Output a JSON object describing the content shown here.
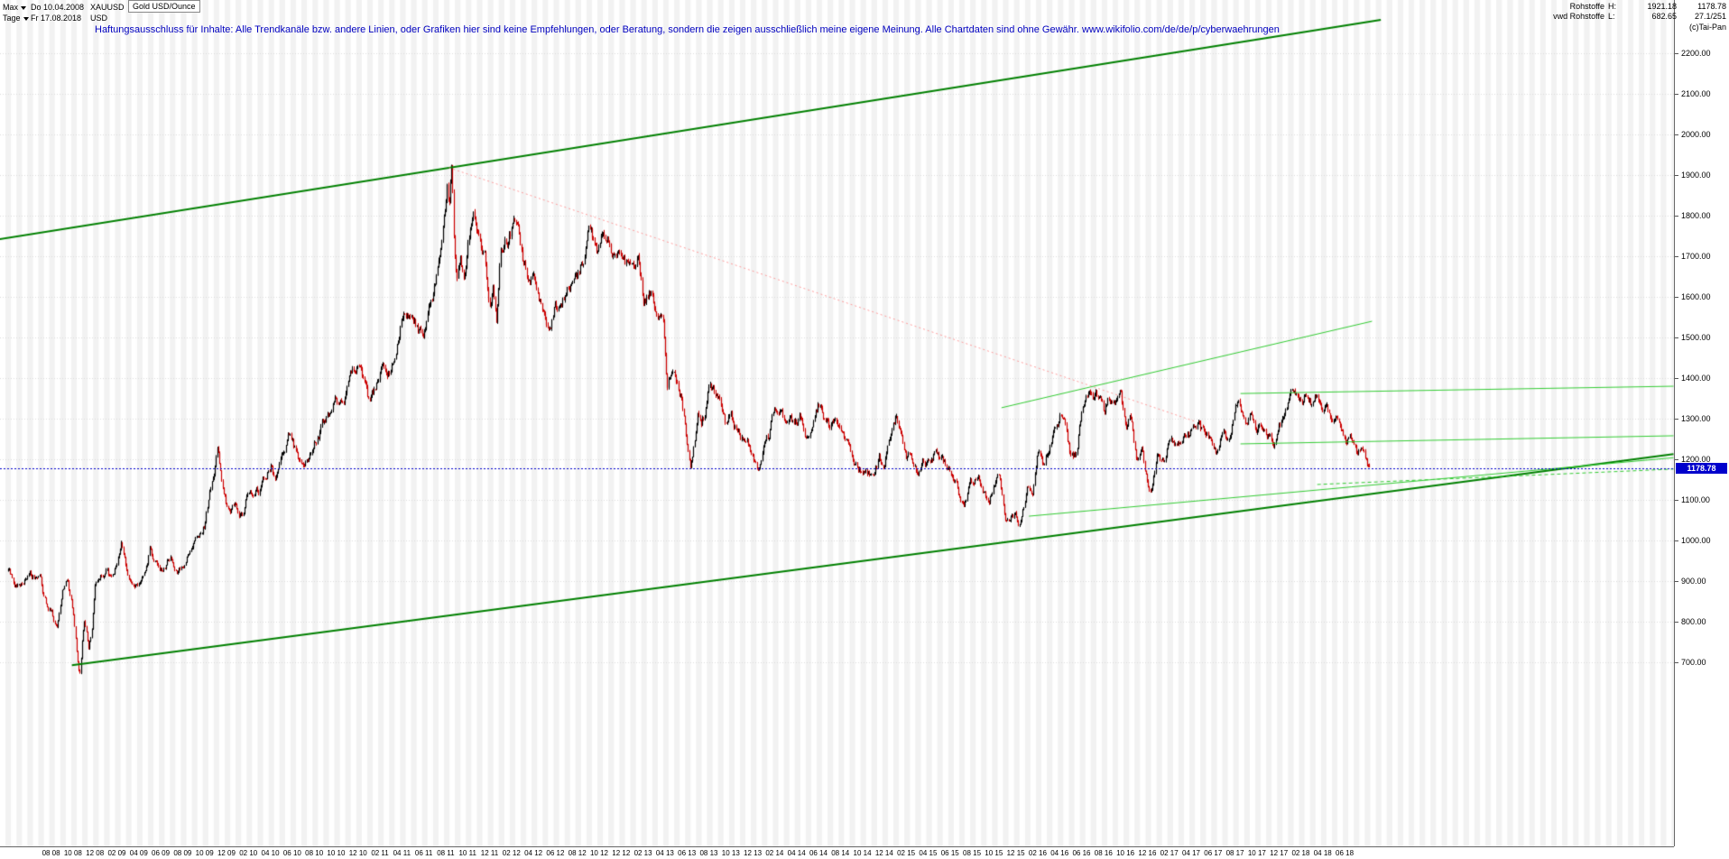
{
  "toolbar": {
    "range_label": "Max",
    "start_date": "Do 10.04.2008",
    "symbol": "XAUUSD",
    "period_label": "Tage",
    "end_date": "Fr 17.08.2018",
    "currency": "USD",
    "instrument": "Gold USD/Ounce"
  },
  "disclaimer": "Haftungsausschluss für Inhalte: Alle Trendkanäle bzw. andere Linien, oder Grafiken hier sind keine Empfehlungen, oder Beratung, sondern die zeigen ausschließlich meine eigene Meinung. Alle Chartdaten sind ohne Gewähr.  www.wikifolio.com/de/de/p/cyberwaehrungen",
  "info_panel": {
    "category": "Rohstoffe",
    "high_label": "H:",
    "high_value": "1921.18",
    "last_value": "1178.78",
    "provider": "vwd Rohstoffe",
    "low_label": "L:",
    "low_value": "682.65",
    "cursor_position": "27.1/251",
    "copyright": "(c)Tai-Pan"
  },
  "chart_data": {
    "type": "candlestick",
    "title": "Gold USD/Ounce",
    "symbol": "XAUUSD",
    "timeframe": "Tage",
    "period_start": "10.04.2008",
    "period_end": "17.08.2018",
    "high": 1921.18,
    "low": 682.65,
    "last": 1178.78,
    "grid": true,
    "legend_position": "none",
    "ylim": [
      247,
      2331
    ],
    "months_span": 124.3,
    "y_ticks": [
      "2200.00",
      "2100.00",
      "2000.00",
      "1900.00",
      "1800.00",
      "1700.00",
      "1600.00",
      "1500.00",
      "1400.00",
      "1300.00",
      "1200.00",
      "1100.00",
      "1000.00",
      "900.00",
      "800.00",
      "700.00"
    ],
    "x_ticks": [
      "08 08",
      "10 08",
      "12 08",
      "02 09",
      "04 09",
      "06 09",
      "08 09",
      "10 09",
      "12 09",
      "02 10",
      "04 10",
      "06 10",
      "08 10",
      "10 10",
      "12 10",
      "02 11",
      "04 11",
      "06 11",
      "08 11",
      "10 11",
      "12 11",
      "02 12",
      "04 12",
      "06 12",
      "08 12",
      "10 12",
      "12 12",
      "02 13",
      "04 13",
      "06 13",
      "08 13",
      "10 13",
      "12 13",
      "02 14",
      "04 14",
      "06 14",
      "08 14",
      "10 14",
      "12 14",
      "02 15",
      "04 15",
      "06 15",
      "08 15",
      "10 15",
      "12 15",
      "02 16",
      "04 16",
      "06 16",
      "08 16",
      "10 16",
      "12 16",
      "02 17",
      "04 17",
      "06 17",
      "08 17",
      "10 17",
      "12 17",
      "02 18",
      "04 18",
      "06 18"
    ],
    "price_path_monthly": [
      [
        0,
        925
      ],
      [
        1,
        880
      ],
      [
        2,
        930
      ],
      [
        3,
        915
      ],
      [
        3.5,
        850
      ],
      [
        4,
        835
      ],
      [
        4.5,
        790
      ],
      [
        5,
        880
      ],
      [
        5.5,
        905
      ],
      [
        6,
        830
      ],
      [
        6.45,
        700
      ],
      [
        6.6,
        683
      ],
      [
        6.75,
        735
      ],
      [
        7,
        815
      ],
      [
        7.4,
        745
      ],
      [
        7.7,
        780
      ],
      [
        8,
        880
      ],
      [
        9,
        920
      ],
      [
        9.5,
        895
      ],
      [
        10,
        950
      ],
      [
        10.4,
        1000
      ],
      [
        11,
        920
      ],
      [
        12,
        890
      ],
      [
        12.5,
        905
      ],
      [
        13,
        975
      ],
      [
        13.5,
        945
      ],
      [
        14,
        930
      ],
      [
        15,
        955
      ],
      [
        15.5,
        935
      ],
      [
        16,
        950
      ],
      [
        17,
        1010
      ],
      [
        18,
        1045
      ],
      [
        19,
        1190
      ],
      [
        19.2,
        1220
      ],
      [
        19.6,
        1130
      ],
      [
        20,
        1095
      ],
      [
        21,
        1080
      ],
      [
        21.5,
        1058
      ],
      [
        22,
        1120
      ],
      [
        23,
        1115
      ],
      [
        24,
        1180
      ],
      [
        24.5,
        1160
      ],
      [
        25,
        1215
      ],
      [
        25.6,
        1245
      ],
      [
        26,
        1240
      ],
      [
        26.5,
        1196
      ],
      [
        27,
        1170
      ],
      [
        27.5,
        1210
      ],
      [
        28,
        1250
      ],
      [
        29,
        1310
      ],
      [
        30,
        1360
      ],
      [
        30.5,
        1340
      ],
      [
        31,
        1385
      ],
      [
        32,
        1420
      ],
      [
        33,
        1335
      ],
      [
        33.5,
        1360
      ],
      [
        34,
        1410
      ],
      [
        35,
        1430
      ],
      [
        36,
        1560
      ],
      [
        36.5,
        1540
      ],
      [
        37,
        1535
      ],
      [
        37.5,
        1510
      ],
      [
        38,
        1500
      ],
      [
        38.5,
        1560
      ],
      [
        39,
        1630
      ],
      [
        39.5,
        1740
      ],
      [
        40,
        1825
      ],
      [
        40.15,
        1890
      ],
      [
        40.3,
        1830
      ],
      [
        40.45,
        1905
      ],
      [
        40.55,
        1921
      ],
      [
        40.75,
        1720
      ],
      [
        41,
        1620
      ],
      [
        41.3,
        1680
      ],
      [
        41.6,
        1640
      ],
      [
        42,
        1720
      ],
      [
        42.5,
        1800
      ],
      [
        43,
        1745
      ],
      [
        43.5,
        1695
      ],
      [
        44,
        1565
      ],
      [
        44.3,
        1610
      ],
      [
        44.6,
        1545
      ],
      [
        45,
        1740
      ],
      [
        46,
        1770
      ],
      [
        46.4,
        1790
      ],
      [
        47,
        1670
      ],
      [
        47.5,
        1640
      ],
      [
        48,
        1665
      ],
      [
        48.5,
        1620
      ],
      [
        49,
        1560
      ],
      [
        49.3,
        1540
      ],
      [
        50,
        1600
      ],
      [
        50.5,
        1570
      ],
      [
        51,
        1615
      ],
      [
        52,
        1650
      ],
      [
        52.5,
        1690
      ],
      [
        53,
        1775
      ],
      [
        53.5,
        1740
      ],
      [
        54,
        1720
      ],
      [
        54.5,
        1750
      ],
      [
        55,
        1715
      ],
      [
        55.5,
        1690
      ],
      [
        56,
        1675
      ],
      [
        57,
        1660
      ],
      [
        57.5,
        1690
      ],
      [
        58,
        1580
      ],
      [
        58.5,
        1620
      ],
      [
        59,
        1595
      ],
      [
        59.8,
        1560
      ],
      [
        60,
        1470
      ],
      [
        60.2,
        1390
      ],
      [
        60.6,
        1440
      ],
      [
        61,
        1390
      ],
      [
        61.5,
        1350
      ],
      [
        62,
        1230
      ],
      [
        62.3,
        1185
      ],
      [
        62.7,
        1250
      ],
      [
        63,
        1310
      ],
      [
        63.3,
        1280
      ],
      [
        63.7,
        1320
      ],
      [
        64,
        1395
      ],
      [
        64.5,
        1360
      ],
      [
        65,
        1330
      ],
      [
        65.5,
        1290
      ],
      [
        66,
        1320
      ],
      [
        66.5,
        1275
      ],
      [
        67,
        1250
      ],
      [
        67.5,
        1230
      ],
      [
        68,
        1200
      ],
      [
        68.4,
        1188
      ],
      [
        69,
        1245
      ],
      [
        69.5,
        1260
      ],
      [
        70,
        1325
      ],
      [
        70.5,
        1330
      ],
      [
        71,
        1285
      ],
      [
        72,
        1290
      ],
      [
        72.5,
        1300
      ],
      [
        73,
        1250
      ],
      [
        73.5,
        1285
      ],
      [
        74,
        1325
      ],
      [
        74.5,
        1305
      ],
      [
        75,
        1285
      ],
      [
        75.5,
        1310
      ],
      [
        76,
        1285
      ],
      [
        76.5,
        1240
      ],
      [
        77,
        1210
      ],
      [
        77.5,
        1185
      ],
      [
        78,
        1170
      ],
      [
        78.3,
        1160
      ],
      [
        79,
        1175
      ],
      [
        79.5,
        1200
      ],
      [
        80,
        1185
      ],
      [
        81,
        1280
      ],
      [
        81.5,
        1260
      ],
      [
        82,
        1215
      ],
      [
        82.5,
        1200
      ],
      [
        83,
        1185
      ],
      [
        83.5,
        1200
      ],
      [
        84,
        1185
      ],
      [
        84.5,
        1215
      ],
      [
        85,
        1190
      ],
      [
        85.5,
        1180
      ],
      [
        86,
        1170
      ],
      [
        86.5,
        1160
      ],
      [
        87,
        1095
      ],
      [
        87.3,
        1080
      ],
      [
        87.7,
        1120
      ],
      [
        88,
        1135
      ],
      [
        88.5,
        1150
      ],
      [
        89,
        1115
      ],
      [
        89.5,
        1105
      ],
      [
        90,
        1140
      ],
      [
        90.5,
        1165
      ],
      [
        91,
        1065
      ],
      [
        91.5,
        1070
      ],
      [
        92,
        1060
      ],
      [
        92.5,
        1048
      ],
      [
        93,
        1115
      ],
      [
        93.5,
        1125
      ],
      [
        94,
        1235
      ],
      [
        94.5,
        1200
      ],
      [
        95,
        1235
      ],
      [
        95.5,
        1260
      ],
      [
        96,
        1290
      ],
      [
        96.5,
        1285
      ],
      [
        97,
        1215
      ],
      [
        97.5,
        1220
      ],
      [
        98,
        1320
      ],
      [
        98.4,
        1360
      ],
      [
        99,
        1350
      ],
      [
        99.3,
        1367
      ],
      [
        100,
        1310
      ],
      [
        100.5,
        1340
      ],
      [
        101,
        1315
      ],
      [
        101.5,
        1335
      ],
      [
        102,
        1275
      ],
      [
        102.5,
        1300
      ],
      [
        103,
        1175
      ],
      [
        103.5,
        1220
      ],
      [
        104,
        1150
      ],
      [
        104.4,
        1128
      ],
      [
        105,
        1210
      ],
      [
        105.5,
        1190
      ],
      [
        106,
        1250
      ],
      [
        106.5,
        1235
      ],
      [
        107,
        1245
      ],
      [
        108,
        1270
      ],
      [
        108.5,
        1290
      ],
      [
        109,
        1270
      ],
      [
        109.5,
        1255
      ],
      [
        110,
        1240
      ],
      [
        110.4,
        1215
      ],
      [
        111,
        1270
      ],
      [
        111.5,
        1255
      ],
      [
        112,
        1320
      ],
      [
        112.3,
        1350
      ],
      [
        112.7,
        1310
      ],
      [
        113,
        1280
      ],
      [
        113.5,
        1305
      ],
      [
        114,
        1270
      ],
      [
        114.5,
        1290
      ],
      [
        115,
        1275
      ],
      [
        115.5,
        1250
      ],
      [
        116,
        1300
      ],
      [
        117,
        1345
      ],
      [
        117.3,
        1360
      ],
      [
        118,
        1320
      ],
      [
        118.5,
        1355
      ],
      [
        119,
        1325
      ],
      [
        119.5,
        1350
      ],
      [
        120,
        1315
      ],
      [
        120.5,
        1305
      ],
      [
        121,
        1300
      ],
      [
        121.5,
        1290
      ],
      [
        122,
        1250
      ],
      [
        122.5,
        1260
      ],
      [
        123,
        1225
      ],
      [
        123.4,
        1215
      ],
      [
        123.7,
        1210
      ],
      [
        124,
        1195
      ],
      [
        124.3,
        1178.78
      ]
    ],
    "trendlines": [
      {
        "name": "channel-upper",
        "t1": -0.7,
        "p1": 1742,
        "t2": 125.3,
        "p2": 2282,
        "color": "#008000",
        "width": 2,
        "dash": []
      },
      {
        "name": "channel-lower",
        "t1": 5.9,
        "p1": 693,
        "t2": 152,
        "p2": 1213,
        "color": "#008000",
        "width": 2,
        "dash": []
      },
      {
        "name": "downtrend-from-ath",
        "t1": 40.3,
        "p1": 1918,
        "t2": 108.4,
        "p2": 1293,
        "color": "#ff9c9c",
        "width": 1,
        "dash": [
          2,
          3
        ]
      },
      {
        "name": "minor-uptrend-2016",
        "t1": 90.7,
        "p1": 1327,
        "t2": 124.5,
        "p2": 1540,
        "color": "#33cc33",
        "width": 1,
        "dash": []
      },
      {
        "name": "resistance-upper",
        "t1": 112.5,
        "p1": 1362,
        "t2": 152,
        "p2": 1380,
        "color": "#33cc33",
        "width": 1,
        "dash": []
      },
      {
        "name": "support-mid",
        "t1": 112.5,
        "p1": 1238,
        "t2": 152,
        "p2": 1258,
        "color": "#33cc33",
        "width": 1,
        "dash": []
      },
      {
        "name": "uptrend-from-2015-low",
        "t1": 93.2,
        "p1": 1060,
        "t2": 152,
        "p2": 1204,
        "color": "#33cc33",
        "width": 1,
        "dash": []
      },
      {
        "name": "support-dashed",
        "t1": 119.5,
        "p1": 1138,
        "t2": 152,
        "p2": 1176,
        "color": "#33cc33",
        "width": 1,
        "dash": [
          4,
          3
        ]
      }
    ],
    "last_price_line": {
      "price": 1178.78,
      "label": "1178.78",
      "color": "#0000cc",
      "dash": [
        2,
        2
      ]
    },
    "colors": {
      "up": "#000000",
      "down": "#cc0000",
      "stripe": "#f2f2f2",
      "grid": "#dcdcdc"
    }
  }
}
